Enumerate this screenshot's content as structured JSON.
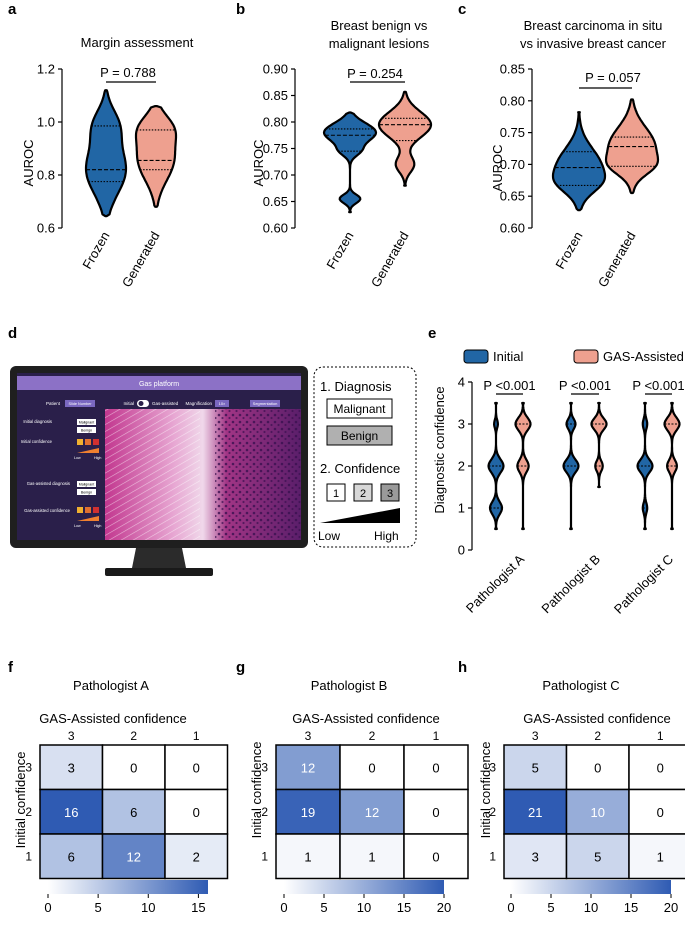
{
  "colors": {
    "frozen": "#2166a5",
    "generated": "#eea08f",
    "heat_low": "#ffffff",
    "heat_high": "#2f5bb3",
    "monitor": "#1f1f1f",
    "screen_bar": "#8c71c6",
    "screen_bg": "#2a1f4a"
  },
  "panels": {
    "a": {
      "letter": "a"
    },
    "b": {
      "letter": "b"
    },
    "c": {
      "letter": "c"
    },
    "d": {
      "letter": "d"
    },
    "e": {
      "letter": "e"
    },
    "f": {
      "letter": "f"
    },
    "g": {
      "letter": "g"
    },
    "h": {
      "letter": "h"
    }
  },
  "chart_data": [
    {
      "id": "a",
      "type": "violin",
      "title": "Margin assessment",
      "ylabel": "AUROC",
      "ylim": [
        0.6,
        1.2
      ],
      "yticks": [
        "0.6",
        "0.8",
        "1.0",
        "1.2"
      ],
      "categories": [
        "Frozen",
        "Generated"
      ],
      "p_value": "P = 0.788",
      "violins": [
        {
          "name": "Frozen",
          "min": 0.645,
          "max": 1.12,
          "modes": [
            [
              0.82,
              0.09,
              1.0
            ],
            [
              0.99,
              0.06,
              0.55
            ]
          ],
          "quartiles": [
            0.775,
            0.82,
            0.985
          ]
        },
        {
          "name": "Generated",
          "min": 0.68,
          "max": 1.06,
          "modes": [
            [
              0.86,
              0.08,
              1.0
            ],
            [
              0.98,
              0.05,
              0.7
            ]
          ],
          "quartiles": [
            0.82,
            0.855,
            0.97
          ]
        }
      ]
    },
    {
      "id": "b",
      "type": "violin",
      "title": "Breast benign vs\nmalignant lesions",
      "ylabel": "AUROC",
      "ylim": [
        0.6,
        0.9
      ],
      "yticks": [
        "0.60",
        "0.65",
        "0.70",
        "0.75",
        "0.80",
        "0.85",
        "0.90"
      ],
      "categories": [
        "Frozen",
        "Generated"
      ],
      "p_value": "P = 0.254",
      "violins": [
        {
          "name": "Frozen",
          "min": 0.63,
          "max": 0.818,
          "modes": [
            [
              0.78,
              0.018,
              1.0
            ],
            [
              0.655,
              0.008,
              0.4
            ],
            [
              0.745,
              0.01,
              0.3
            ]
          ],
          "quartiles": [
            0.745,
            0.775,
            0.787
          ]
        },
        {
          "name": "Generated",
          "min": 0.68,
          "max": 0.857,
          "modes": [
            [
              0.795,
              0.024,
              1.0
            ],
            [
              0.72,
              0.015,
              0.35
            ]
          ],
          "quartiles": [
            0.765,
            0.795,
            0.807
          ]
        }
      ]
    },
    {
      "id": "c",
      "type": "violin",
      "title": "Breast carcinoma in situ\nvs invasive breast cancer",
      "ylabel": "AUROC",
      "ylim": [
        0.6,
        0.85
      ],
      "yticks": [
        "0.60",
        "0.65",
        "0.70",
        "0.75",
        "0.80",
        "0.85"
      ],
      "categories": [
        "Frozen",
        "Generated"
      ],
      "p_value": "P = 0.057",
      "violins": [
        {
          "name": "Frozen",
          "min": 0.628,
          "max": 0.782,
          "modes": [
            [
              0.695,
              0.03,
              1.0
            ],
            [
              0.67,
              0.015,
              0.35
            ]
          ],
          "quartiles": [
            0.667,
            0.695,
            0.72
          ]
        },
        {
          "name": "Generated",
          "min": 0.655,
          "max": 0.802,
          "modes": [
            [
              0.728,
              0.03,
              1.0
            ],
            [
              0.697,
              0.014,
              0.45
            ]
          ],
          "quartiles": [
            0.697,
            0.728,
            0.743
          ]
        }
      ]
    },
    {
      "id": "e",
      "type": "violin",
      "ylabel": "Diagnostic confidence",
      "ylim": [
        0,
        4
      ],
      "yticks": [
        "0",
        "1",
        "2",
        "3",
        "4"
      ],
      "categories": [
        "Pathologist A",
        "Pathologist B",
        "Pathologist C"
      ],
      "series": [
        "Initial",
        "GAS-Assisted"
      ],
      "p_values": [
        "P <0.001",
        "P <0.001",
        "P <0.001"
      ],
      "violins": [
        {
          "name": "Pathologist A Initial",
          "min": 0.5,
          "max": 3.5,
          "modes": [
            [
              2,
              0.16,
              1.0
            ],
            [
              1,
              0.15,
              0.8
            ],
            [
              3,
              0.1,
              0.25
            ]
          ]
        },
        {
          "name": "Pathologist A GAS-Assisted",
          "min": 0.5,
          "max": 3.5,
          "modes": [
            [
              3,
              0.15,
              1.0
            ],
            [
              2,
              0.15,
              0.75
            ]
          ]
        },
        {
          "name": "Pathologist B Initial",
          "min": 0.5,
          "max": 3.5,
          "modes": [
            [
              2,
              0.15,
              1.0
            ],
            [
              3,
              0.12,
              0.6
            ]
          ]
        },
        {
          "name": "Pathologist B GAS-Assisted",
          "min": 1.5,
          "max": 3.5,
          "modes": [
            [
              3,
              0.14,
              1.0
            ],
            [
              2,
              0.12,
              0.5
            ]
          ]
        },
        {
          "name": "Pathologist C Initial",
          "min": 0.5,
          "max": 3.5,
          "modes": [
            [
              2,
              0.15,
              1.0
            ],
            [
              1,
              0.12,
              0.3
            ],
            [
              3,
              0.12,
              0.3
            ]
          ]
        },
        {
          "name": "Pathologist C GAS-Assisted",
          "min": 0.5,
          "max": 3.5,
          "modes": [
            [
              3,
              0.15,
              1.0
            ],
            [
              2,
              0.14,
              0.65
            ]
          ]
        }
      ]
    },
    {
      "id": "f",
      "type": "heatmap",
      "title": "Pathologist A",
      "xlabel": "GAS-Assisted confidence",
      "ylabel": "Initial confidence",
      "xcats": [
        "3",
        "2",
        "1"
      ],
      "ycats": [
        "3",
        "2",
        "1"
      ],
      "values": [
        [
          3,
          0,
          0
        ],
        [
          16,
          6,
          0
        ],
        [
          6,
          12,
          2
        ]
      ],
      "vmax": 16,
      "colorbar_ticks": [
        0,
        5,
        10,
        15
      ],
      "colorbar_labels": [
        "0",
        "5",
        "10",
        "15"
      ]
    },
    {
      "id": "g",
      "type": "heatmap",
      "title": "Pathologist B",
      "xlabel": "GAS-Assisted confidence",
      "ylabel": "Initial confidence",
      "xcats": [
        "3",
        "2",
        "1"
      ],
      "ycats": [
        "3",
        "2",
        "1"
      ],
      "values": [
        [
          12,
          0,
          0
        ],
        [
          19,
          12,
          0
        ],
        [
          1,
          1,
          0
        ]
      ],
      "vmax": 20,
      "colorbar_ticks": [
        0,
        5,
        10,
        15,
        20
      ],
      "colorbar_labels": [
        "0",
        "5",
        "10",
        "15",
        "20"
      ]
    },
    {
      "id": "h",
      "type": "heatmap",
      "title": "Pathologist C",
      "xlabel": "GAS-Assisted confidence",
      "ylabel": "Initial confidence",
      "xcats": [
        "3",
        "2",
        "1"
      ],
      "ycats": [
        "3",
        "2",
        "1"
      ],
      "values": [
        [
          5,
          0,
          0
        ],
        [
          21,
          10,
          0
        ],
        [
          3,
          5,
          1
        ]
      ],
      "vmax": 20,
      "colorbar_ticks": [
        0,
        5,
        10,
        15,
        20
      ],
      "colorbar_labels": [
        "0",
        "5",
        "10",
        "15",
        "20"
      ]
    }
  ],
  "platform": {
    "screen_title": "Gas platform",
    "patient_label": "Patient",
    "patient_value": "Slide Number",
    "toggle_initial": "Initial",
    "toggle_gas": "Gas-assisted",
    "magnification_label": "Magnification",
    "magnification_value": "10×",
    "segmentation": "Segmentation",
    "initial_diagnosis": "Initial diagnosis",
    "initial_confidence": "Initial confidence",
    "gas_diagnosis": "Gas-assisted diagnosis",
    "gas_confidence": "Gas-assisted confidence",
    "malignant": "Malignant",
    "benign": "Benign",
    "low": "Low",
    "high": "High"
  },
  "legend_box": {
    "step1": "1. Diagnosis",
    "malignant": "Malignant",
    "benign": "Benign",
    "step2": "2. Confidence",
    "levels": [
      "1",
      "2",
      "3"
    ],
    "low": "Low",
    "high": "High"
  }
}
